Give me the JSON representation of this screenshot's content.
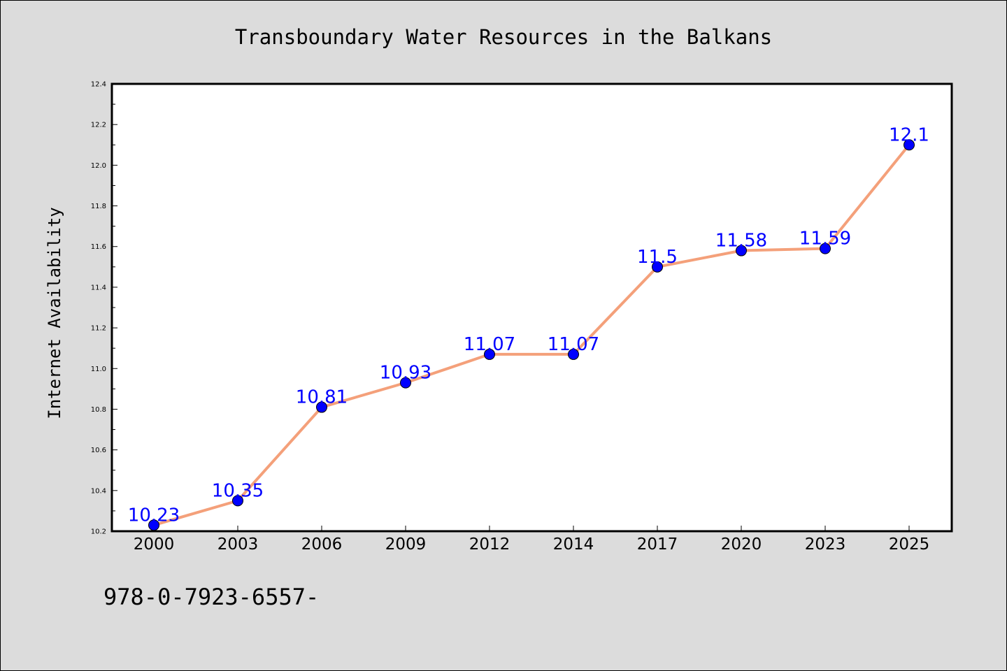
{
  "chart_data": {
    "type": "line",
    "title": "Transboundary Water Resources in the Balkans",
    "xlabel": "",
    "ylabel": "Internet Availability",
    "categories": [
      "2000",
      "2003",
      "2006",
      "2009",
      "2012",
      "2014",
      "2017",
      "2020",
      "2023",
      "2025"
    ],
    "values": [
      10.23,
      10.35,
      10.81,
      10.93,
      11.07,
      11.07,
      11.5,
      11.58,
      11.59,
      12.1
    ],
    "data_labels": [
      "10.23",
      "10.35",
      "10.81",
      "10.93",
      "11.07",
      "11.07",
      "11.5",
      "11.58",
      "11.59",
      "12.1"
    ],
    "ylim": [
      10.2,
      12.4
    ],
    "yticks": [
      "10.2",
      "10.4",
      "10.6",
      "10.8",
      "11.0",
      "11.2",
      "11.4",
      "11.6",
      "11.8",
      "12.0",
      "12.2",
      "12.4"
    ],
    "grid": false,
    "line_color": "#f4a07a",
    "marker_color": "#0000ff",
    "label_color": "#0000ff"
  },
  "footer_text": "978-0-7923-6557-"
}
